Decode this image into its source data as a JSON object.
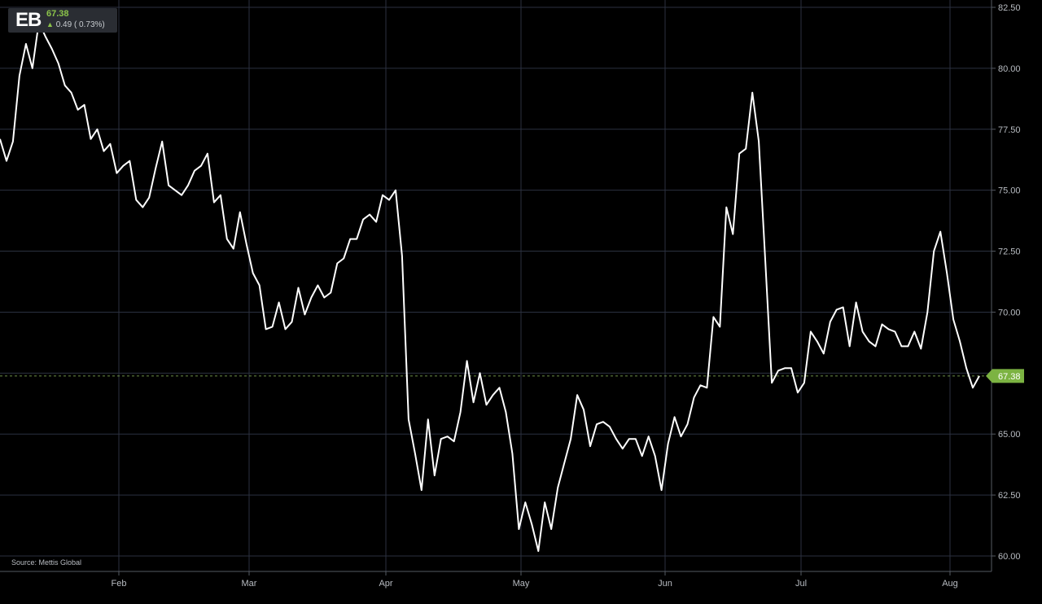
{
  "ticker": {
    "symbol": "EB",
    "price": "67.38",
    "change": "0.49 ( 0.73%)",
    "direction": "up",
    "up_color": "#8bc34a"
  },
  "source": "Source: Mettis Global",
  "chart_data": {
    "type": "line",
    "title": "",
    "xlabel": "",
    "ylabel": "",
    "ylim": [
      60,
      82.5
    ],
    "y_ticks": [
      "82.50",
      "80.00",
      "77.50",
      "75.00",
      "72.50",
      "70.00",
      "67.50",
      "65.00",
      "62.50",
      "60.00"
    ],
    "x_ticks": [
      "Feb",
      "Mar",
      "Apr",
      "May",
      "Jun",
      "Jul",
      "Aug"
    ],
    "grid": true,
    "last_value": 67.38,
    "last_value_label": "67.38",
    "line_color": "#ffffff",
    "marker_color": "#7cb342",
    "series": [
      {
        "values": [
          77.1,
          76.2,
          77.0,
          79.7,
          81.0,
          80.0,
          81.9,
          81.3,
          80.8,
          80.2,
          79.3,
          79.0,
          78.3,
          78.5,
          77.1,
          77.5,
          76.6,
          76.9,
          75.7,
          76.0,
          76.2,
          74.6,
          74.3,
          74.7,
          75.9,
          77.0,
          75.2,
          75.0,
          74.8,
          75.2,
          75.8,
          76.0,
          76.5,
          74.5,
          74.8,
          73.0,
          72.6,
          74.1,
          72.8,
          71.6,
          71.1,
          69.3,
          69.4,
          70.4,
          69.3,
          69.6,
          71.0,
          69.9,
          70.6,
          71.1,
          70.6,
          70.8,
          72.0,
          72.2,
          73.0,
          73.0,
          73.8,
          74.0,
          73.7,
          74.8,
          74.6,
          75.0,
          72.3,
          65.6,
          64.2,
          62.7,
          65.6,
          63.3,
          64.8,
          64.9,
          64.7,
          65.9,
          68.0,
          66.3,
          67.5,
          66.2,
          66.6,
          66.9,
          65.9,
          64.2,
          61.1,
          62.2,
          61.3,
          60.2,
          62.2,
          61.1,
          62.8,
          63.8,
          64.8,
          66.6,
          66.0,
          64.5,
          65.4,
          65.5,
          65.3,
          64.8,
          64.4,
          64.8,
          64.8,
          64.1,
          64.9,
          64.1,
          62.7,
          64.6,
          65.7,
          64.9,
          65.4,
          66.5,
          67.0,
          66.9,
          69.8,
          69.4,
          74.3,
          73.2,
          76.5,
          76.7,
          79.0,
          77.0,
          72.1,
          67.1,
          67.6,
          67.7,
          67.7,
          66.7,
          67.1,
          69.2,
          68.8,
          68.3,
          69.6,
          70.1,
          70.2,
          68.6,
          70.4,
          69.2,
          68.8,
          68.6,
          69.5,
          69.3,
          69.2,
          68.6,
          68.6,
          69.2,
          68.5,
          70.0,
          72.5,
          73.3,
          71.6,
          69.7,
          68.8,
          67.7,
          66.9,
          67.38
        ]
      }
    ]
  }
}
